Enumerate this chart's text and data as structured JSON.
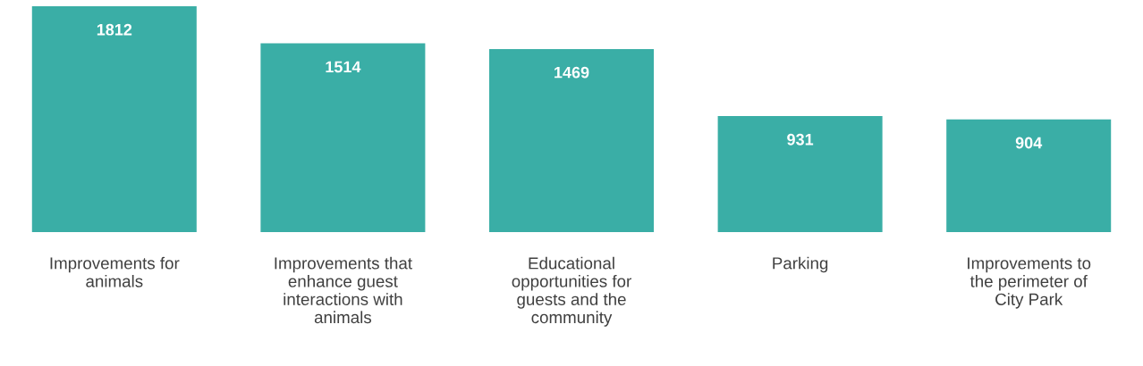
{
  "chart_data": {
    "type": "bar",
    "categories": [
      "Improvements for\nanimals",
      "Improvements that\nenhance guest\ninteractions with\nanimals",
      "Educational\nopportunities for\nguests and the\ncommunity",
      "Parking",
      "Improvements to\nthe perimeter of\nCity Park"
    ],
    "values": [
      1812,
      1514,
      1469,
      931,
      904
    ],
    "color": "#3aaea6",
    "data_labels": true,
    "grid": false,
    "legend": false
  }
}
